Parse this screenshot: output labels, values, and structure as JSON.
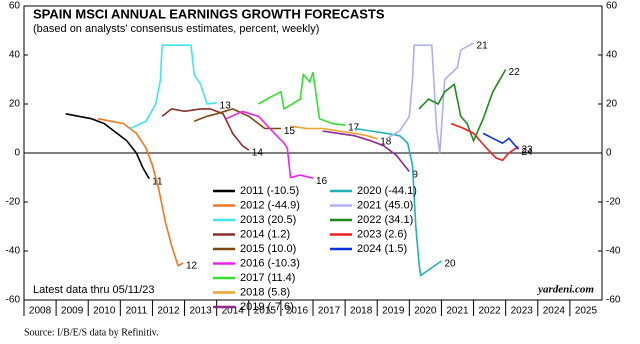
{
  "chart_data": {
    "type": "line",
    "title": "SPAIN MSCI ANNUAL EARNINGS GROWTH FORECASTS",
    "subtitle": "(based on analysts' consensus estimates, percent, weekly)",
    "note": "Latest data thru 05/11/23",
    "source": "Source: I/B/E/S data by Refinitiv.",
    "brand": "yardeni.com",
    "xlim": [
      2008,
      2026
    ],
    "xticks": [
      2008,
      2009,
      2010,
      2011,
      2012,
      2013,
      2014,
      2015,
      2016,
      2017,
      2018,
      2019,
      2020,
      2021,
      2022,
      2023,
      2024,
      2025
    ],
    "ylim": [
      -60,
      60
    ],
    "yticks": [
      -60,
      -40,
      -20,
      0,
      20,
      40,
      60
    ],
    "series": [
      {
        "name": "2011 (-10.5)",
        "label": "11",
        "color": "#000000",
        "x": [
          2009.3,
          2009.7,
          2010.1,
          2010.5,
          2010.9,
          2011.2,
          2011.5,
          2011.7,
          2011.9
        ],
        "values": [
          16,
          15,
          14,
          12,
          8,
          5,
          0,
          -6,
          -10.5
        ]
      },
      {
        "name": "2012 (-44.9)",
        "label": "12",
        "color": "#f07820",
        "x": [
          2010.3,
          2010.7,
          2011.1,
          2011.5,
          2011.8,
          2012.0,
          2012.2,
          2012.4,
          2012.6,
          2012.8,
          2012.95
        ],
        "values": [
          14,
          13,
          12,
          8,
          2,
          -5,
          -15,
          -28,
          -38,
          -46,
          -44.9
        ]
      },
      {
        "name": "2013 (20.5)",
        "label": "13",
        "color": "#3ee6f0",
        "x": [
          2011.3,
          2011.8,
          2012.1,
          2012.25,
          2012.3,
          2013.2,
          2013.3,
          2013.5,
          2013.7,
          2014.0
        ],
        "values": [
          10,
          13,
          20,
          30,
          44,
          44,
          32,
          28,
          20,
          20.5
        ]
      },
      {
        "name": "2014 (1.2)",
        "label": "14",
        "color": "#8b2e2e",
        "x": [
          2012.3,
          2012.6,
          2013.0,
          2013.5,
          2013.8,
          2014.2,
          2014.5,
          2014.8,
          2015.0
        ],
        "values": [
          15,
          18,
          17,
          18,
          18,
          16,
          8,
          3,
          1.2
        ]
      },
      {
        "name": "2015 (10.0)",
        "label": "15",
        "color": "#7a4a10",
        "x": [
          2013.3,
          2013.7,
          2014.0,
          2014.5,
          2015.0,
          2015.5,
          2016.0
        ],
        "values": [
          13,
          15,
          16,
          18,
          15,
          10,
          10
        ]
      },
      {
        "name": "2016 (-10.3)",
        "label": "16",
        "color": "#ee22ee",
        "x": [
          2014.3,
          2014.8,
          2015.3,
          2015.8,
          2016.1,
          2016.2,
          2016.3,
          2016.6,
          2017.0
        ],
        "values": [
          14,
          17,
          15,
          8,
          4,
          2,
          -10,
          -9,
          -10.3
        ]
      },
      {
        "name": "2017 (11.4)",
        "label": "17",
        "color": "#33dd33",
        "x": [
          2015.3,
          2015.7,
          2016.0,
          2016.1,
          2016.6,
          2016.7,
          2016.9,
          2017.0,
          2017.2,
          2017.6,
          2018.0
        ],
        "values": [
          20,
          23,
          25,
          18,
          22,
          32,
          29,
          33,
          14,
          12,
          11.4
        ]
      },
      {
        "name": "2018 (5.8)",
        "label": "18",
        "color": "#f0a030",
        "x": [
          2016.3,
          2016.8,
          2017.3,
          2017.8,
          2018.3,
          2018.7,
          2019.0
        ],
        "values": [
          11,
          10,
          10,
          9,
          8,
          7,
          5.8
        ]
      },
      {
        "name": "2019 (-7.6)",
        "label": "9",
        "color": "#8e2a8e",
        "x": [
          2017.3,
          2017.8,
          2018.3,
          2018.8,
          2019.2,
          2019.6,
          2020.0
        ],
        "values": [
          9,
          8,
          7,
          5,
          3,
          -1,
          -7.6
        ]
      },
      {
        "name": "2020 (-44.1)",
        "label": "20",
        "color": "#20b0b8",
        "x": [
          2018.3,
          2018.8,
          2019.3,
          2019.7,
          2019.95,
          2020.1,
          2020.2,
          2020.3,
          2020.35,
          2021.0
        ],
        "values": [
          10,
          9,
          8,
          7,
          4,
          -5,
          -30,
          -45,
          -50,
          -44.1
        ]
      },
      {
        "name": "2021 (45.0)",
        "label": "21",
        "color": "#b0b0f0",
        "x": [
          2019.3,
          2019.7,
          2020.0,
          2020.1,
          2020.15,
          2020.7,
          2020.85,
          2020.95,
          2021.1,
          2021.5,
          2021.6,
          2022.0
        ],
        "values": [
          6,
          9,
          15,
          30,
          44,
          44,
          10,
          0,
          30,
          35,
          42,
          45
        ]
      },
      {
        "name": "2022 (34.1)",
        "label": "22",
        "color": "#1e8a1e",
        "x": [
          2020.3,
          2020.6,
          2020.9,
          2021.1,
          2021.4,
          2021.6,
          2021.8,
          2022.0,
          2022.3,
          2022.6,
          2023.0
        ],
        "values": [
          18,
          22,
          20,
          25,
          28,
          15,
          12,
          5,
          14,
          25,
          34.1
        ]
      },
      {
        "name": "2023 (2.6)",
        "label": "23",
        "color": "#ee2020",
        "x": [
          2021.3,
          2021.7,
          2022.0,
          2022.4,
          2022.7,
          2022.9,
          2023.1,
          2023.4
        ],
        "values": [
          12,
          10,
          8,
          2,
          -2,
          -3,
          0,
          2.6
        ]
      },
      {
        "name": "2024 (1.5)",
        "label": "24",
        "color": "#1030e0",
        "x": [
          2022.3,
          2022.6,
          2022.9,
          2023.1,
          2023.4
        ],
        "values": [
          8,
          6,
          4,
          6,
          1.5
        ]
      }
    ]
  }
}
